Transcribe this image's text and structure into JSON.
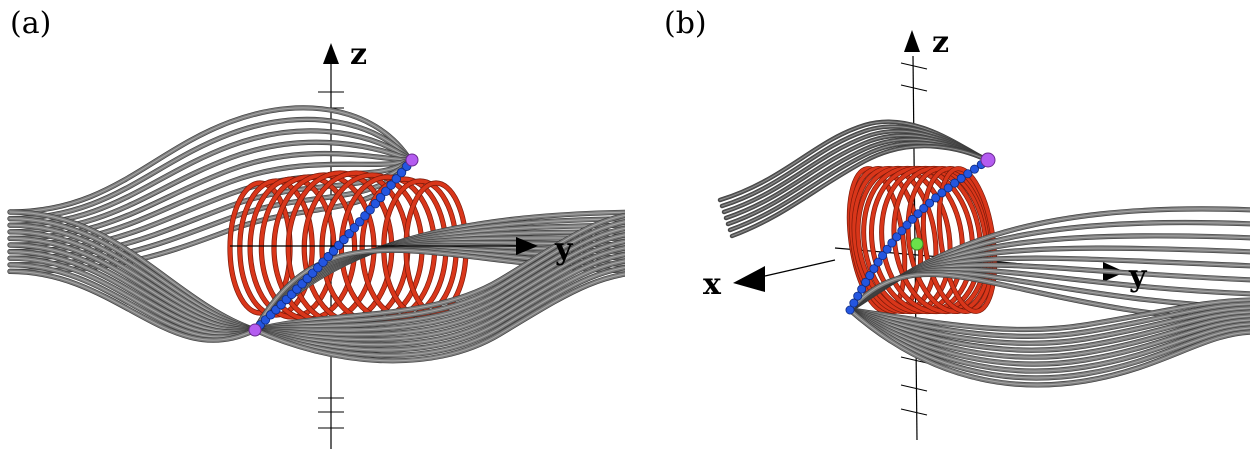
{
  "panels": [
    {
      "label": "(a)",
      "axes": {
        "z": "z",
        "y": "y"
      },
      "colors": {
        "field_lines": "#7a7a7a",
        "loops": "#d9361a",
        "beads": "#2456e0",
        "endpoints": "#b45cf0"
      }
    },
    {
      "label": "(b)",
      "axes": {
        "z": "z",
        "y": "y",
        "x": "x"
      },
      "colors": {
        "field_lines": "#7a7a7a",
        "loops": "#d9361a",
        "beads": "#2456e0",
        "endpoints": "#b45cf0",
        "center": "#6be04a"
      }
    }
  ]
}
